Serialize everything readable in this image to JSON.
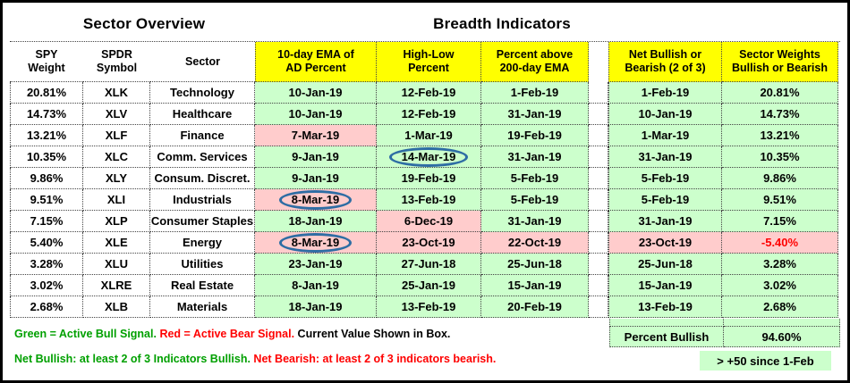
{
  "titles": {
    "left": "Sector Overview",
    "right": "Breadth Indicators"
  },
  "columns": [
    {
      "id": "spy-weight",
      "line1": "SPY",
      "line2": "Weight",
      "yellow": false
    },
    {
      "id": "spdr-symbol",
      "line1": "SPDR",
      "line2": "Symbol",
      "yellow": false
    },
    {
      "id": "sector",
      "line1": "Sector",
      "line2": "",
      "yellow": false
    },
    {
      "id": "ad-percent",
      "line1": "10-day EMA of",
      "line2": "AD Percent",
      "yellow": true
    },
    {
      "id": "high-low",
      "line1": "High-Low",
      "line2": "Percent",
      "yellow": true
    },
    {
      "id": "pct-above-ema",
      "line1": "Percent above",
      "line2": "200-day EMA",
      "yellow": true
    },
    {
      "id": "net-bullish",
      "line1": "Net Bullish or",
      "line2": "Bearish (2 of 3)",
      "yellow": true
    },
    {
      "id": "sector-weights",
      "line1": "Sector Weights",
      "line2": "Bullish or Bearish",
      "yellow": true
    }
  ],
  "rows": [
    {
      "spy_weight": "20.81%",
      "symbol": "XLK",
      "sector": "Technology",
      "ad": {
        "v": "10-Jan-19",
        "bear": false,
        "circled": false
      },
      "hl": {
        "v": "12-Feb-19",
        "bear": false,
        "circled": false
      },
      "ema": {
        "v": "1-Feb-19",
        "bear": false
      },
      "net": {
        "v": "1-Feb-19",
        "bear": false
      },
      "wt": {
        "v": "20.81%",
        "bear": false,
        "red": false
      }
    },
    {
      "spy_weight": "14.73%",
      "symbol": "XLV",
      "sector": "Healthcare",
      "ad": {
        "v": "10-Jan-19",
        "bear": false,
        "circled": false
      },
      "hl": {
        "v": "12-Feb-19",
        "bear": false,
        "circled": false
      },
      "ema": {
        "v": "31-Jan-19",
        "bear": false
      },
      "net": {
        "v": "10-Jan-19",
        "bear": false
      },
      "wt": {
        "v": "14.73%",
        "bear": false,
        "red": false
      }
    },
    {
      "spy_weight": "13.21%",
      "symbol": "XLF",
      "sector": "Finance",
      "ad": {
        "v": "7-Mar-19",
        "bear": true,
        "circled": false
      },
      "hl": {
        "v": "1-Mar-19",
        "bear": false,
        "circled": false
      },
      "ema": {
        "v": "19-Feb-19",
        "bear": false
      },
      "net": {
        "v": "1-Mar-19",
        "bear": false
      },
      "wt": {
        "v": "13.21%",
        "bear": false,
        "red": false
      }
    },
    {
      "spy_weight": "10.35%",
      "symbol": "XLC",
      "sector": "Comm. Services",
      "ad": {
        "v": "9-Jan-19",
        "bear": false,
        "circled": false
      },
      "hl": {
        "v": "14-Mar-19",
        "bear": false,
        "circled": true
      },
      "ema": {
        "v": "31-Jan-19",
        "bear": false
      },
      "net": {
        "v": "31-Jan-19",
        "bear": false
      },
      "wt": {
        "v": "10.35%",
        "bear": false,
        "red": false
      }
    },
    {
      "spy_weight": "9.86%",
      "symbol": "XLY",
      "sector": "Consum. Discret.",
      "ad": {
        "v": "9-Jan-19",
        "bear": false,
        "circled": false
      },
      "hl": {
        "v": "19-Feb-19",
        "bear": false,
        "circled": false
      },
      "ema": {
        "v": "5-Feb-19",
        "bear": false
      },
      "net": {
        "v": "5-Feb-19",
        "bear": false
      },
      "wt": {
        "v": "9.86%",
        "bear": false,
        "red": false
      }
    },
    {
      "spy_weight": "9.51%",
      "symbol": "XLI",
      "sector": "Industrials",
      "ad": {
        "v": "8-Mar-19",
        "bear": true,
        "circled": true
      },
      "hl": {
        "v": "13-Feb-19",
        "bear": false,
        "circled": false
      },
      "ema": {
        "v": "5-Feb-19",
        "bear": false
      },
      "net": {
        "v": "5-Feb-19",
        "bear": false
      },
      "wt": {
        "v": "9.51%",
        "bear": false,
        "red": false
      }
    },
    {
      "spy_weight": "7.15%",
      "symbol": "XLP",
      "sector": "Consumer Staples",
      "ad": {
        "v": "18-Jan-19",
        "bear": false,
        "circled": false
      },
      "hl": {
        "v": "6-Dec-19",
        "bear": true,
        "circled": false
      },
      "ema": {
        "v": "31-Jan-19",
        "bear": false
      },
      "net": {
        "v": "31-Jan-19",
        "bear": false
      },
      "wt": {
        "v": "7.15%",
        "bear": false,
        "red": false
      }
    },
    {
      "spy_weight": "5.40%",
      "symbol": "XLE",
      "sector": "Energy",
      "ad": {
        "v": "8-Mar-19",
        "bear": true,
        "circled": true
      },
      "hl": {
        "v": "23-Oct-19",
        "bear": true,
        "circled": false
      },
      "ema": {
        "v": "22-Oct-19",
        "bear": true
      },
      "net": {
        "v": "23-Oct-19",
        "bear": true
      },
      "wt": {
        "v": "-5.40%",
        "bear": true,
        "red": true
      }
    },
    {
      "spy_weight": "3.28%",
      "symbol": "XLU",
      "sector": "Utilities",
      "ad": {
        "v": "23-Jan-19",
        "bear": false,
        "circled": false
      },
      "hl": {
        "v": "27-Jun-18",
        "bear": false,
        "circled": false
      },
      "ema": {
        "v": "25-Jun-18",
        "bear": false
      },
      "net": {
        "v": "25-Jun-18",
        "bear": false
      },
      "wt": {
        "v": "3.28%",
        "bear": false,
        "red": false
      }
    },
    {
      "spy_weight": "3.02%",
      "symbol": "XLRE",
      "sector": "Real Estate",
      "ad": {
        "v": "8-Jan-19",
        "bear": false,
        "circled": false
      },
      "hl": {
        "v": "25-Jan-19",
        "bear": false,
        "circled": false
      },
      "ema": {
        "v": "15-Jan-19",
        "bear": false
      },
      "net": {
        "v": "15-Jan-19",
        "bear": false
      },
      "wt": {
        "v": "3.02%",
        "bear": false,
        "red": false
      }
    },
    {
      "spy_weight": "2.68%",
      "symbol": "XLB",
      "sector": "Materials",
      "ad": {
        "v": "18-Jan-19",
        "bear": false,
        "circled": false
      },
      "hl": {
        "v": "13-Feb-19",
        "bear": false,
        "circled": false
      },
      "ema": {
        "v": "20-Feb-19",
        "bear": false
      },
      "net": {
        "v": "13-Feb-19",
        "bear": false
      },
      "wt": {
        "v": "2.68%",
        "bear": false,
        "red": false
      }
    }
  ],
  "summary": {
    "label": "Percent Bullish",
    "value": "94.60%",
    "note": "> +50 since 1-Feb"
  },
  "legend": {
    "line1": [
      {
        "text": "Green = Active Bull Signal.",
        "color": "green"
      },
      {
        "text": " Red = Active Bear Signal.",
        "color": "red"
      },
      {
        "text": " Current Value Shown in Box.",
        "color": "black"
      }
    ],
    "line2": [
      {
        "text": "Net Bullish: at least 2 of 3 Indicators Bullish.",
        "color": "green"
      },
      {
        "text": " Net Bearish: at least 2 of 3 indicators bearish.",
        "color": "red"
      }
    ]
  },
  "colors": {
    "bull_bg": "#CCFFCC",
    "bear_bg": "#FFCCCC",
    "header_bg": "#FFFF00",
    "circle_stroke": "#2E6DA4",
    "bear_text": "#FF0000",
    "legend_green": "#00A000",
    "legend_red": "#FF0000"
  }
}
